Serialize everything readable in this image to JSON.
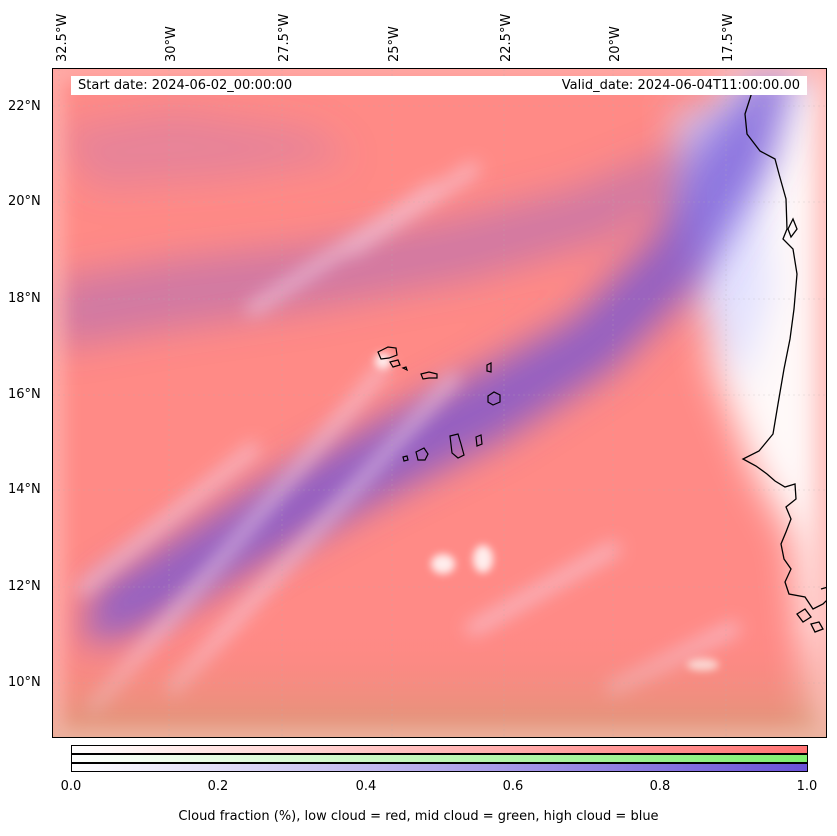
{
  "map": {
    "start_date": "Start date: 2024-06-02_00:00:00",
    "valid_date": "Valid_date: 2024-06-04T11:00:00.00",
    "lon_labels": [
      "32.5°W",
      "30°W",
      "27.5°W",
      "25°W",
      "22.5°W",
      "20°W",
      "17.5°W"
    ],
    "lat_labels": [
      "22°N",
      "20°N",
      "18°N",
      "16°N",
      "14°N",
      "12°N",
      "10°N"
    ],
    "features": [
      "Cape Verde islands",
      "West African coastline"
    ],
    "colors": {
      "low_cloud": "#ff7f7f",
      "mid_cloud": "#7fef7f",
      "high_cloud": "#7a5ad8",
      "clear": "#ffffff"
    }
  },
  "colorbar": {
    "ticks": [
      "0.0",
      "0.2",
      "0.4",
      "0.6",
      "0.8",
      "1.0"
    ],
    "range": [
      0,
      1
    ],
    "caption": "Cloud fraction (%), low cloud = red, mid cloud = green, high cloud = blue"
  }
}
